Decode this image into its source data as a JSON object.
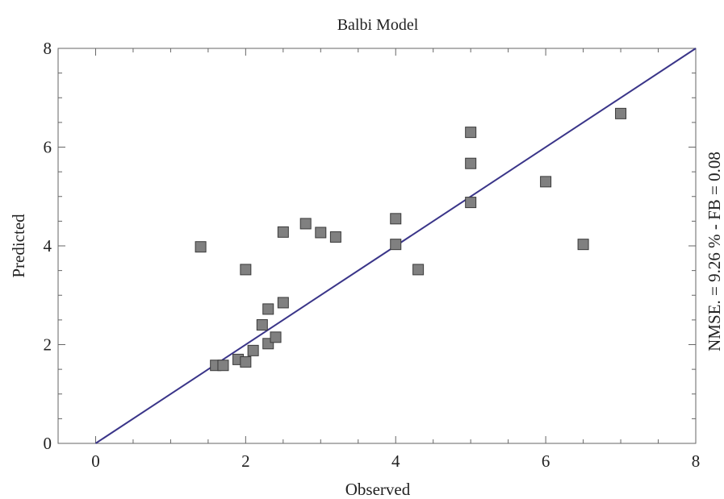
{
  "chart_data": {
    "type": "scatter",
    "title": "Balbi Model",
    "xlabel": "Observed",
    "ylabel": "Predicted",
    "annotation": "NMSE. = 9.26 % -  FB = 0.08",
    "xlim": [
      -0.5,
      8
    ],
    "ylim": [
      0,
      8
    ],
    "xticks": [
      0,
      2,
      4,
      6,
      8
    ],
    "yticks": [
      0,
      2,
      4,
      6,
      8
    ],
    "xtick_labels": [
      "0",
      "2",
      "4",
      "6",
      "8"
    ],
    "ytick_labels": [
      "0",
      "2",
      "4",
      "6",
      "8"
    ],
    "grid": false,
    "legend": "none",
    "series": [
      {
        "points": [
          {
            "x": 1.4,
            "y": 3.98
          },
          {
            "x": 1.6,
            "y": 1.58
          },
          {
            "x": 1.7,
            "y": 1.58
          },
          {
            "x": 1.9,
            "y": 1.7
          },
          {
            "x": 2.0,
            "y": 1.65
          },
          {
            "x": 2.0,
            "y": 3.52
          },
          {
            "x": 2.1,
            "y": 1.88
          },
          {
            "x": 2.22,
            "y": 2.4
          },
          {
            "x": 2.3,
            "y": 2.02
          },
          {
            "x": 2.3,
            "y": 2.72
          },
          {
            "x": 2.4,
            "y": 2.15
          },
          {
            "x": 2.5,
            "y": 2.85
          },
          {
            "x": 2.5,
            "y": 4.28
          },
          {
            "x": 2.8,
            "y": 4.45
          },
          {
            "x": 3.0,
            "y": 4.27
          },
          {
            "x": 3.2,
            "y": 4.18
          },
          {
            "x": 4.0,
            "y": 4.55
          },
          {
            "x": 4.0,
            "y": 4.03
          },
          {
            "x": 4.3,
            "y": 3.52
          },
          {
            "x": 5.0,
            "y": 6.3
          },
          {
            "x": 5.0,
            "y": 5.67
          },
          {
            "x": 5.0,
            "y": 4.88
          },
          {
            "x": 6.0,
            "y": 5.3
          },
          {
            "x": 6.5,
            "y": 4.03
          },
          {
            "x": 7.0,
            "y": 6.68
          }
        ]
      },
      {
        "type": "line",
        "points": [
          {
            "x": 0,
            "y": 0
          },
          {
            "x": 8,
            "y": 8
          }
        ]
      }
    ]
  },
  "colors": {
    "line": "#3a3589",
    "marker_fill": "#808080",
    "marker_stroke": "#3a3a3a",
    "frame": "#666666"
  }
}
